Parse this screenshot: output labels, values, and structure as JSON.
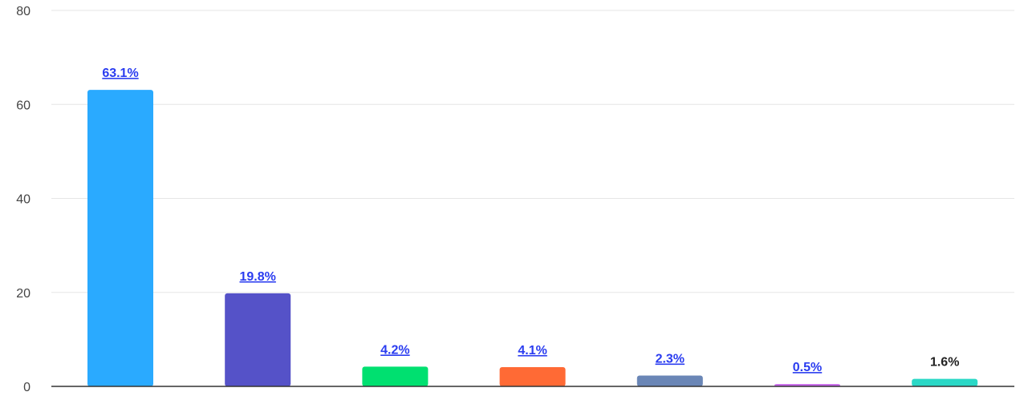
{
  "chart_data": {
    "type": "bar",
    "categories": [
      "",
      "",
      "",
      "",
      "",
      "",
      ""
    ],
    "values": [
      63.1,
      19.8,
      4.2,
      4.1,
      2.3,
      0.5,
      1.6
    ],
    "data_labels": [
      "63.1%",
      "19.8%",
      "4.2%",
      "4.1%",
      "2.3%",
      "0.5%",
      "1.6%"
    ],
    "label_is_link": [
      true,
      true,
      true,
      true,
      true,
      true,
      false
    ],
    "colors": [
      "#2aaaff",
      "#5552c8",
      "#00e070",
      "#ff6a35",
      "#6a86b6",
      "#c765ea",
      "#2ad8c6"
    ],
    "title": "",
    "xlabel": "",
    "ylabel": "",
    "ylim": [
      0,
      80
    ],
    "yticks": [
      0,
      20,
      40,
      60,
      80
    ],
    "ytick_labels": [
      "0",
      "20",
      "40",
      "60",
      "80"
    ],
    "grid": true,
    "legend": "none"
  }
}
